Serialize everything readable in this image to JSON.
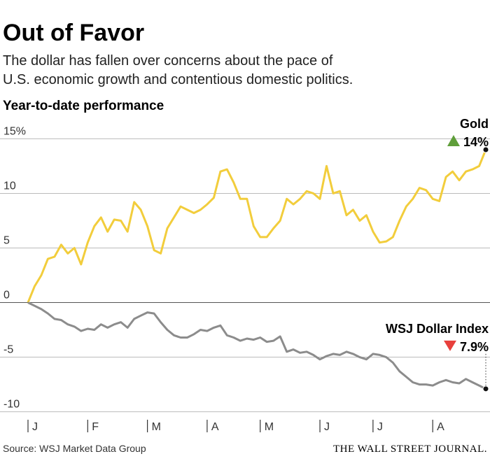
{
  "chart_data": {
    "type": "line",
    "title": "Out of Favor",
    "subtitle": [
      "The dollar has fallen over concerns about the pace of",
      "U.S. economic growth and contentious domestic politics."
    ],
    "y_axis_label": "Year-to-date performance",
    "source": "Source: WSJ Market Data Group",
    "credit": "THE WALL STREET JOURNAL.",
    "categories": [
      "J",
      null,
      null,
      null,
      null,
      null,
      null,
      null,
      null,
      "F",
      null,
      null,
      null,
      null,
      null,
      null,
      null,
      null,
      "M",
      null,
      null,
      null,
      null,
      null,
      null,
      null,
      null,
      "A",
      null,
      null,
      null,
      null,
      null,
      null,
      null,
      "M",
      null,
      null,
      null,
      null,
      null,
      null,
      null,
      null,
      "J",
      null,
      null,
      null,
      null,
      null,
      null,
      null,
      "J",
      null,
      null,
      null,
      null,
      null,
      null,
      null,
      null,
      "A",
      null,
      null,
      null,
      null,
      null,
      null,
      null,
      null
    ],
    "ylim": [
      -11.5,
      16.5
    ],
    "yticks": [
      {
        "value": 15,
        "label": "15%"
      },
      10,
      5,
      0,
      -5,
      -10
    ],
    "grid": true,
    "series": [
      {
        "name": "Gold",
        "color": "#f2cd3c",
        "direction": "up",
        "end_label": "14%",
        "values": [
          0,
          1.5,
          2.5,
          4,
          4.2,
          5.3,
          4.5,
          5,
          3.5,
          5.5,
          7,
          7.8,
          6.5,
          7.6,
          7.5,
          6.5,
          9.2,
          8.5,
          7,
          4.8,
          4.5,
          6.8,
          7.8,
          8.8,
          8.5,
          8.2,
          8.5,
          9,
          9.6,
          12,
          12.2,
          11,
          9.5,
          9.5,
          7,
          6,
          6,
          6.8,
          7.5,
          9.5,
          9,
          9.5,
          10.2,
          10,
          9.5,
          12.5,
          10,
          10.2,
          8,
          8.5,
          7.5,
          8,
          6.5,
          5.5,
          5.6,
          6,
          7.5,
          8.8,
          9.5,
          10.5,
          10.3,
          9.5,
          9.3,
          11.5,
          12,
          11.2,
          12,
          12.2,
          12.5,
          14
        ]
      },
      {
        "name": "WSJ Dollar Index",
        "color": "#8c8c8c",
        "direction": "down",
        "end_label": "7.9%",
        "values": [
          0,
          -0.3,
          -0.6,
          -1,
          -1.5,
          -1.6,
          -2,
          -2.2,
          -2.6,
          -2.4,
          -2.5,
          -2,
          -2.3,
          -2,
          -1.8,
          -2.3,
          -1.5,
          -1.2,
          -0.9,
          -1,
          -1.8,
          -2.5,
          -3,
          -3.2,
          -3.2,
          -2.9,
          -2.5,
          -2.6,
          -2.3,
          -2.1,
          -3,
          -3.2,
          -3.5,
          -3.3,
          -3.4,
          -3.2,
          -3.6,
          -3.5,
          -3.1,
          -4.5,
          -4.3,
          -4.6,
          -4.5,
          -4.8,
          -5.2,
          -4.9,
          -4.7,
          -4.8,
          -4.5,
          -4.7,
          -5,
          -5.2,
          -4.7,
          -4.8,
          -5,
          -5.5,
          -6.3,
          -6.8,
          -7.3,
          -7.5,
          -7.5,
          -7.6,
          -7.3,
          -7.1,
          -7.3,
          -7.4,
          -7,
          -7.3,
          -7.6,
          -7.9
        ]
      }
    ]
  }
}
